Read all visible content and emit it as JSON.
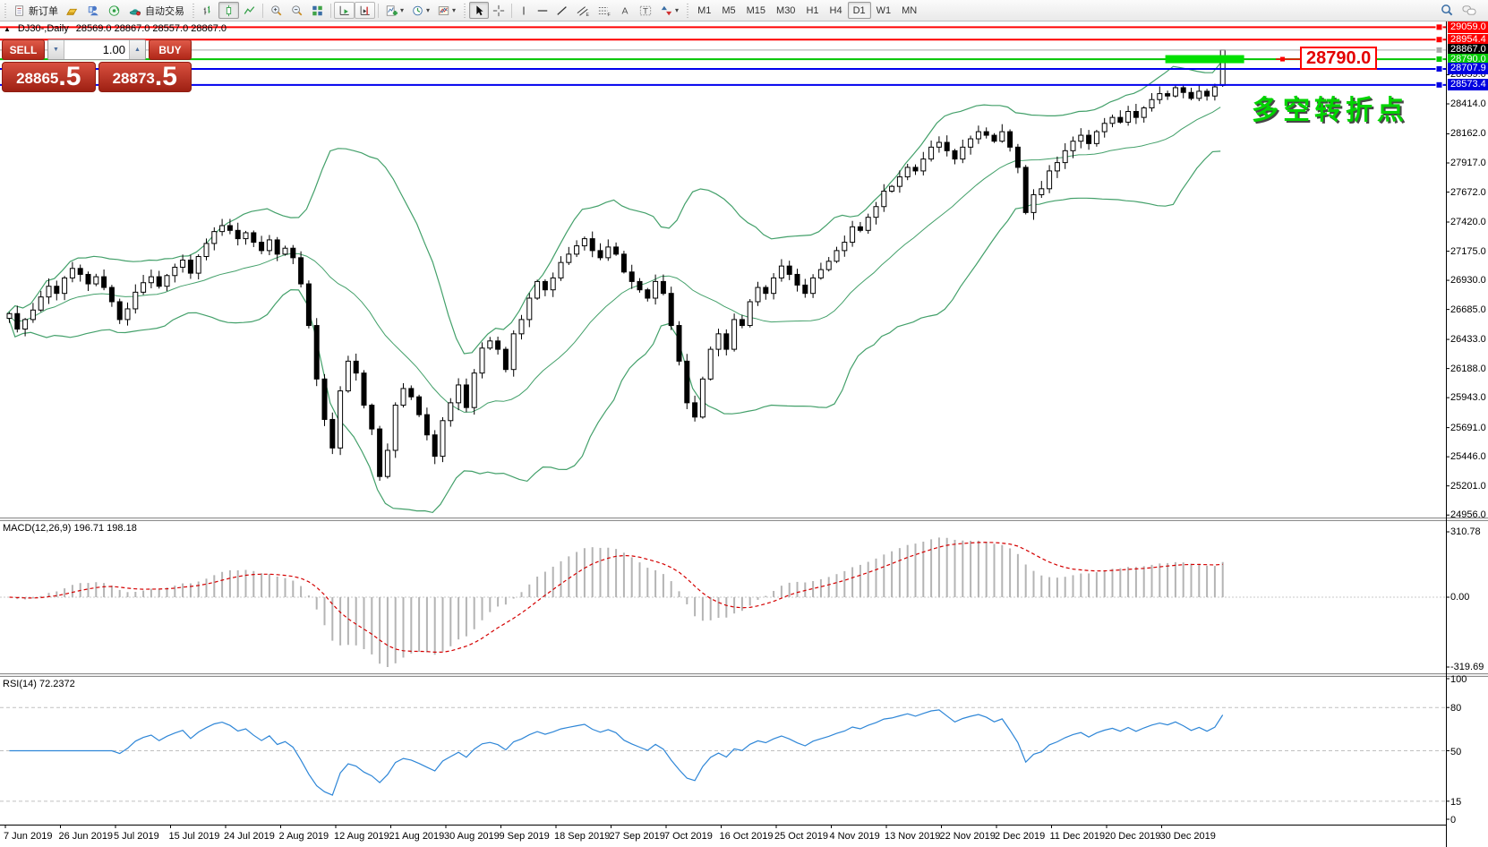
{
  "toolbar": {
    "new_order_label": "新订单",
    "auto_trading_label": "自动交易",
    "timeframes": [
      "M1",
      "M5",
      "M15",
      "M30",
      "H1",
      "H4",
      "D1",
      "W1",
      "MN"
    ],
    "active_timeframe": "D1"
  },
  "chart": {
    "title_marker": "▲",
    "title": "DJ30-,Daily",
    "ohlc_text": "28569.0 28867.0 28557.0 28867.0"
  },
  "trade_panel": {
    "sell_label": "SELL",
    "buy_label": "BUY",
    "volume": "1.00",
    "sell_price_main": "28865",
    "sell_price_frac": ".5",
    "buy_price_main": "28873",
    "buy_price_frac": ".5"
  },
  "annotations": {
    "price_callout": "28790.0",
    "turning_point_note": "多空转折点",
    "note_color": "#00d400",
    "zone": {
      "bar_from": 147,
      "bar_to": 157,
      "price": 28790,
      "color": "#00e000"
    }
  },
  "price_lines": [
    {
      "label": "29059.0",
      "price": 29059.0,
      "line_color": "#ff0000",
      "box_color": "#ff0000",
      "width": 2
    },
    {
      "label": "28954.4",
      "price": 28954.4,
      "line_color": "#ff0000",
      "box_color": "#ff0000",
      "width": 2
    },
    {
      "label": "28867.0",
      "price": 28867.0,
      "line_color": "#a8a8a8",
      "box_color": "#000000",
      "width": 1
    },
    {
      "label": "28790.0",
      "price": 28790.0,
      "line_color": "#00c400",
      "box_color": "#00ca00",
      "width": 2
    },
    {
      "label": "28707.9",
      "price": 28707.9,
      "line_color": "#0000ee",
      "box_color": "#0000e0",
      "width": 2
    },
    {
      "label": "28573.4",
      "price": 28573.4,
      "line_color": "#0000ee",
      "box_color": "#0000e0",
      "width": 2
    }
  ],
  "price_axis_ticks": [
    28659.0,
    28414.0,
    28162.0,
    27917.0,
    27672.0,
    27420.0,
    27175.0,
    26930.0,
    26685.0,
    26433.0,
    26188.0,
    25943.0,
    25691.0,
    25446.0,
    25201.0,
    24956.0
  ],
  "indicators": {
    "macd_label": "MACD(12,26,9) 196.71 198.18",
    "macd_axis": [
      "310.78",
      "0.00",
      "-319.69"
    ],
    "rsi_label": "RSI(14) 72.2372",
    "rsi_axis": [
      "100",
      "80",
      "50",
      "15",
      "0"
    ],
    "rsi_levels": [
      80,
      50,
      15
    ]
  },
  "date_axis": [
    "7 Jun 2019",
    "26 Jun 2019",
    "5 Jul 2019",
    "15 Jul 2019",
    "24 Jul 2019",
    "2 Aug 2019",
    "12 Aug 2019",
    "21 Aug 2019",
    "30 Aug 2019",
    "9 Sep 2019",
    "18 Sep 2019",
    "27 Sep 2019",
    "7 Oct 2019",
    "16 Oct 2019",
    "25 Oct 2019",
    "4 Nov 2019",
    "13 Nov 2019",
    "22 Nov 2019",
    "2 Dec 2019",
    "11 Dec 2019",
    "20 Dec 2019",
    "30 Dec 2019"
  ],
  "chart_data": {
    "type": "candlestick",
    "symbol": "DJ30-",
    "timeframe": "Daily",
    "x_range": [
      "7 Jun 2019",
      "31 Dec 2019"
    ],
    "y_range": [
      24956,
      29059
    ],
    "closes": [
      26650,
      26520,
      26600,
      26680,
      26790,
      26880,
      26820,
      26950,
      27030,
      26980,
      26900,
      26960,
      26870,
      26750,
      26600,
      26690,
      26830,
      26910,
      26960,
      26880,
      26970,
      27040,
      27100,
      26990,
      27130,
      27240,
      27340,
      27390,
      27350,
      27280,
      27330,
      27250,
      27180,
      27270,
      27150,
      27200,
      27120,
      26900,
      26550,
      26100,
      25760,
      25520,
      26000,
      26250,
      26150,
      25880,
      25680,
      25280,
      25500,
      25880,
      26020,
      25950,
      25800,
      25630,
      25450,
      25750,
      25900,
      26050,
      25860,
      26150,
      26360,
      26420,
      26350,
      26180,
      26480,
      26600,
      26780,
      26920,
      26850,
      26950,
      27080,
      27150,
      27220,
      27280,
      27180,
      27120,
      27210,
      27150,
      27000,
      26920,
      26850,
      26780,
      26920,
      26820,
      26550,
      26250,
      25900,
      25780,
      26100,
      26350,
      26480,
      26350,
      26600,
      26550,
      26750,
      26870,
      26820,
      26950,
      27050,
      26980,
      26890,
      26820,
      26950,
      27020,
      27090,
      27180,
      27250,
      27380,
      27350,
      27460,
      27550,
      27680,
      27720,
      27800,
      27880,
      27850,
      27950,
      28050,
      28090,
      28020,
      27950,
      28050,
      28120,
      28180,
      28150,
      28100,
      28180,
      28050,
      27880,
      27500,
      27650,
      27700,
      27850,
      27920,
      28020,
      28100,
      28150,
      28080,
      28180,
      28250,
      28300,
      28260,
      28350,
      28300,
      28380,
      28450,
      28500,
      28480,
      28550,
      28510,
      28460,
      28520,
      28480,
      28557,
      28867
    ],
    "last_bar": {
      "open": 28569,
      "high": 28867,
      "low": 28557,
      "close": 28867
    },
    "bollinger": {
      "period": 20,
      "deviation": 2,
      "color": "#43a06a"
    },
    "macd": {
      "fast": 12,
      "slow": 26,
      "signal": 9,
      "main_value": 196.71,
      "signal_value": 198.18
    },
    "rsi": {
      "period": 14,
      "value": 72.2372,
      "color": "#2e86d7"
    }
  }
}
